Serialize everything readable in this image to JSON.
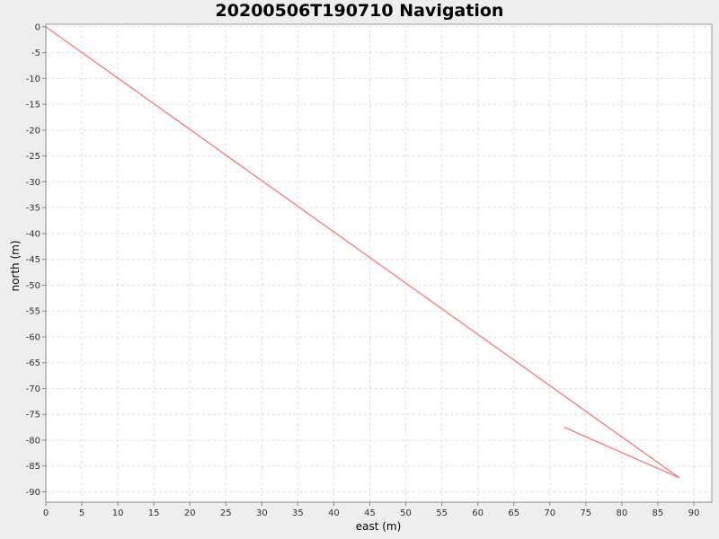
{
  "chart_data": {
    "type": "line",
    "title": "20200506T190710 Navigation",
    "xlabel": "east (m)",
    "ylabel": "north (m)",
    "xlim": [
      0,
      92.5
    ],
    "ylim": [
      -92,
      0.5
    ],
    "xticks": [
      0,
      5,
      10,
      15,
      20,
      25,
      30,
      35,
      40,
      45,
      50,
      55,
      60,
      65,
      70,
      75,
      80,
      85,
      90
    ],
    "yticks": [
      0,
      -5,
      -10,
      -15,
      -20,
      -25,
      -30,
      -35,
      -40,
      -45,
      -50,
      -55,
      -60,
      -65,
      -70,
      -75,
      -80,
      -85,
      -90
    ],
    "grid": true,
    "series": [
      {
        "color": "#ff5555",
        "x": [
          0,
          88,
          72
        ],
        "y": [
          0,
          -87.3,
          -77.5
        ]
      }
    ]
  }
}
